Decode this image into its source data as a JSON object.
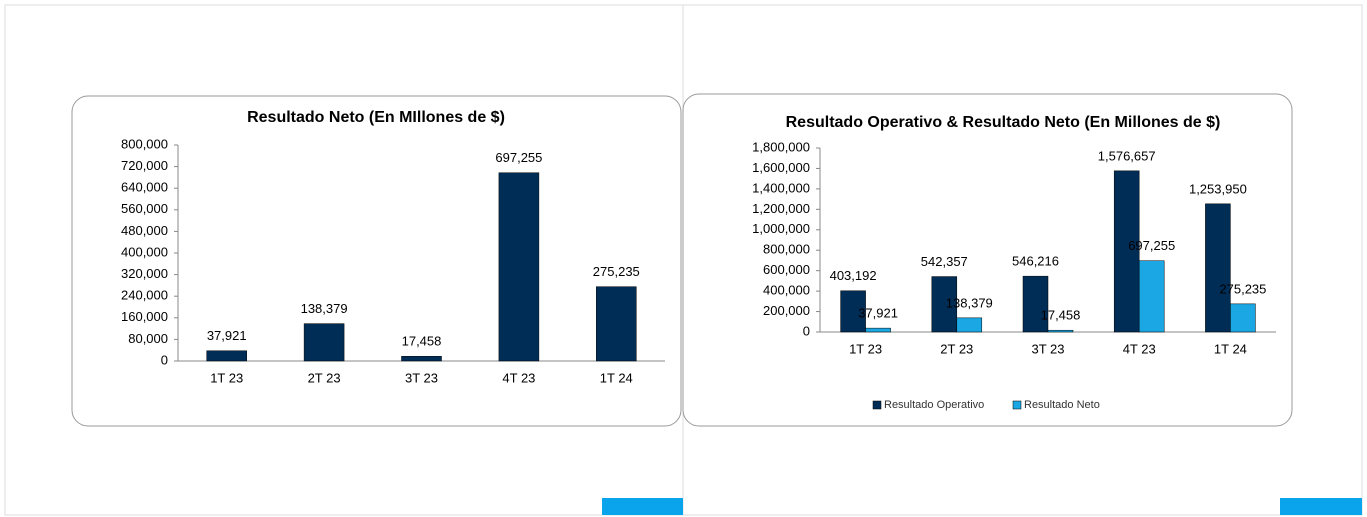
{
  "chart_data": [
    {
      "type": "bar",
      "title": "Resultado Neto (En MIllones de $)",
      "categories": [
        "1T 23",
        "2T 23",
        "3T 23",
        "4T 23",
        "1T 24"
      ],
      "values": [
        37921,
        138379,
        17458,
        697255,
        275235
      ],
      "value_labels": [
        "37,921",
        "138,379",
        "17,458",
        "697,255",
        "275,235"
      ],
      "color": "#002d56",
      "ylim": [
        0,
        800000
      ],
      "yticks": [
        0,
        {
          "value": 80000,
          "label": "80,000"
        },
        {
          "value": 160000,
          "label": "160,000"
        },
        {
          "value": 240000,
          "label": "240,000"
        },
        {
          "value": 320000,
          "label": "320,000"
        },
        {
          "value": 400000,
          "label": "400,000"
        },
        {
          "value": 480000,
          "label": "480,000"
        },
        {
          "value": 560000,
          "label": "560,000"
        },
        {
          "value": 640000,
          "label": "640,000"
        },
        {
          "value": 720000,
          "label": "720,000"
        },
        {
          "value": 800000,
          "label": "800,000"
        }
      ]
    },
    {
      "type": "bar",
      "title": "Resultado Operativo & Resultado Neto  (En Millones de $)",
      "categories": [
        "1T 23",
        "2T 23",
        "3T 23",
        "4T 23",
        "1T 24"
      ],
      "series": [
        {
          "name": "Resultado Operativo",
          "color": "#002d56",
          "values": [
            403192,
            542357,
            546216,
            1576657,
            1253950
          ],
          "value_labels": [
            "403,192",
            "542,357",
            "546,216",
            "1,576,657",
            "1,253,950"
          ]
        },
        {
          "name": "Resultado Neto",
          "color": "#1aa7e4",
          "values": [
            37921,
            138379,
            17458,
            697255,
            275235
          ],
          "value_labels": [
            "37,921",
            "138,379",
            "17,458",
            "697,255",
            "275,235"
          ]
        }
      ],
      "ylim": [
        0,
        1800000
      ],
      "yticks": [
        0,
        {
          "value": 200000,
          "label": "200,000"
        },
        {
          "value": 400000,
          "label": "400,000"
        },
        {
          "value": 600000,
          "label": "600,000"
        },
        {
          "value": 800000,
          "label": "800,000"
        },
        {
          "value": 1000000,
          "label": "1,000,000"
        },
        {
          "value": 1200000,
          "label": "1,200,000"
        },
        {
          "value": 1400000,
          "label": "1,400,000"
        },
        {
          "value": 1600000,
          "label": "1,600,000"
        },
        {
          "value": 1800000,
          "label": "1,800,000"
        }
      ],
      "legend": "bottom"
    }
  ]
}
